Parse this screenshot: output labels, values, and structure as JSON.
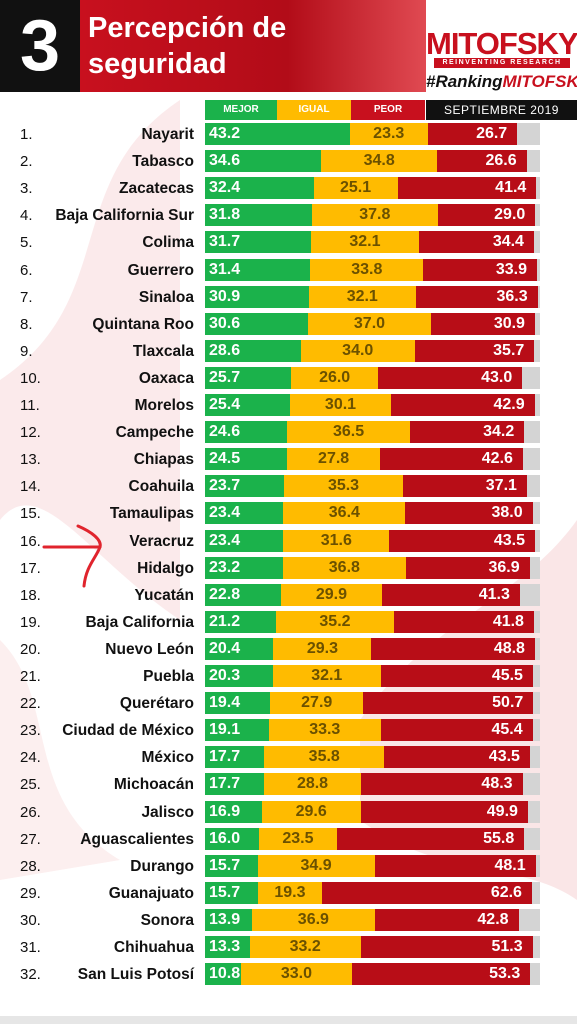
{
  "header": {
    "number": "3",
    "title": "Percepción de\nseguridad",
    "brand": "MITOFSKY",
    "tagline": "REINVENTING RESEARCH",
    "hashtag_prefix": "#Ranking",
    "hashtag_brand": "MITOFSKY",
    "date": "SEPTIEMBRE 2019"
  },
  "colors": {
    "mejor": "#1bb24b",
    "igual": "#ffbb00",
    "peor": "#b80d17",
    "header_red": "#c8101e"
  },
  "chart_data": {
    "type": "bar",
    "stacked": true,
    "orientation": "horizontal",
    "legend": [
      "MEJOR",
      "IGUAL",
      "PEOR"
    ],
    "categories": [
      "Nayarit",
      "Tabasco",
      "Zacatecas",
      "Baja California Sur",
      "Colima",
      "Guerrero",
      "Sinaloa",
      "Quintana Roo",
      "Tlaxcala",
      "Oaxaca",
      "Morelos",
      "Campeche",
      "Chiapas",
      "Coahuila",
      "Tamaulipas",
      "Veracruz",
      "Hidalgo",
      "Yucatán",
      "Baja California",
      "Nuevo León",
      "Puebla",
      "Querétaro",
      "Ciudad de México",
      "México",
      "Michoacán",
      "Jalisco",
      "Aguascalientes",
      "Durango",
      "Guanajuato",
      "Sonora",
      "Chihuahua",
      "San Luis Potosí"
    ],
    "ranks": [
      "1.",
      "2.",
      "3.",
      "4.",
      "5.",
      "6.",
      "7.",
      "8.",
      "9.",
      "10.",
      "11.",
      "12.",
      "13.",
      "14.",
      "15.",
      "16.",
      "17.",
      "18.",
      "19.",
      "20.",
      "21.",
      "22.",
      "23.",
      "24.",
      "25.",
      "26.",
      "27.",
      "28.",
      "29.",
      "30.",
      "31.",
      "32."
    ],
    "series": [
      {
        "name": "MEJOR",
        "values": [
          43.2,
          34.6,
          32.4,
          31.8,
          31.7,
          31.4,
          30.9,
          30.6,
          28.6,
          25.7,
          25.4,
          24.6,
          24.5,
          23.7,
          23.4,
          23.4,
          23.2,
          22.8,
          21.2,
          20.4,
          20.3,
          19.4,
          19.1,
          17.7,
          17.7,
          16.9,
          16.0,
          15.7,
          15.7,
          13.9,
          13.3,
          10.8
        ]
      },
      {
        "name": "IGUAL",
        "values": [
          23.3,
          34.8,
          25.1,
          37.8,
          32.1,
          33.8,
          32.1,
          37.0,
          34.0,
          26.0,
          30.1,
          36.5,
          27.8,
          35.3,
          36.4,
          31.6,
          36.8,
          29.9,
          35.2,
          29.3,
          32.1,
          27.9,
          33.3,
          35.8,
          28.8,
          29.6,
          23.5,
          34.9,
          19.3,
          36.9,
          33.2,
          33.0
        ]
      },
      {
        "name": "PEOR",
        "values": [
          26.7,
          26.6,
          41.4,
          29.0,
          34.4,
          33.9,
          36.3,
          30.9,
          35.7,
          43.0,
          42.9,
          34.2,
          42.6,
          37.1,
          38.0,
          43.5,
          36.9,
          41.3,
          41.8,
          48.8,
          45.5,
          50.7,
          45.4,
          43.5,
          48.3,
          49.9,
          55.8,
          48.1,
          62.6,
          42.8,
          51.3,
          53.3
        ]
      }
    ],
    "xlim": [
      0,
      100
    ],
    "highlight": "Veracruz"
  }
}
